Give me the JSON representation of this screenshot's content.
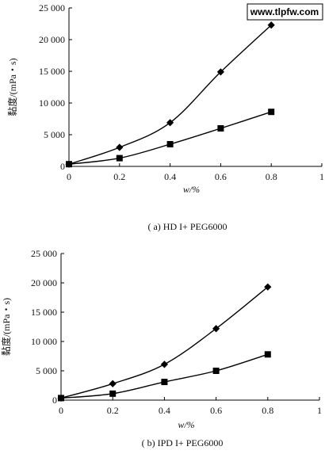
{
  "watermark": "www.tlpfw.com",
  "chart_data": [
    {
      "type": "line",
      "caption": "( a) HD I+ PEG6000",
      "xlabel": "w/%",
      "ylabel": "黏度/(mPa・s)",
      "xlim": [
        0,
        1
      ],
      "ylim": [
        0,
        25000
      ],
      "xticks": [
        "0",
        "0.2",
        "0.4",
        "0.6",
        "0.8",
        "1"
      ],
      "yticks": [
        "0",
        "5 000",
        "10 000",
        "15 000",
        "20 000",
        "25 000"
      ],
      "x": [
        0,
        0.2,
        0.4,
        0.6,
        0.8
      ],
      "series": [
        {
          "marker": "diamond",
          "values": [
            350,
            3000,
            6900,
            14900,
            22300
          ]
        },
        {
          "marker": "square",
          "values": [
            350,
            1300,
            3500,
            6000,
            8600
          ]
        }
      ]
    },
    {
      "type": "line",
      "caption": "( b) IPD I+ PEG6000",
      "xlabel": "w/%",
      "ylabel": "黏度/(mPa・s)",
      "xlim": [
        0,
        1
      ],
      "ylim": [
        0,
        25000
      ],
      "xticks": [
        "0",
        "0.2",
        "0.4",
        "0.6",
        "0.8",
        "1"
      ],
      "yticks": [
        "0",
        "5 000",
        "10 000",
        "15 000",
        "20 000",
        "25 000"
      ],
      "x": [
        0,
        0.2,
        0.4,
        0.6,
        0.8
      ],
      "series": [
        {
          "marker": "diamond",
          "values": [
            350,
            2800,
            6100,
            12200,
            19300
          ]
        },
        {
          "marker": "square",
          "values": [
            350,
            1100,
            3100,
            5000,
            7800
          ]
        }
      ]
    }
  ]
}
